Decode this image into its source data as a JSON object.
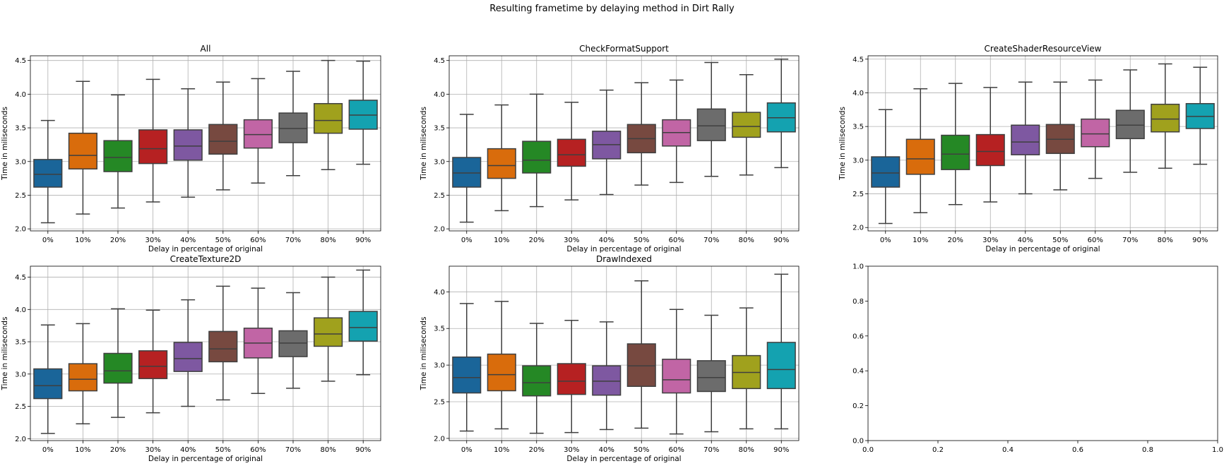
{
  "suptitle": "Resulting frametime by delaying method in Dirt Rally",
  "colors": [
    "#1f77b4",
    "#ff7f0e",
    "#2ca02c",
    "#d62728",
    "#9467bd",
    "#8c564b",
    "#e377c2",
    "#7f7f7f",
    "#bcbd22",
    "#17becf"
  ],
  "chart_data": [
    {
      "type": "box",
      "title": "All",
      "xlabel": "Delay in percentage of original",
      "ylabel": "Time in miliseconds",
      "ylim": [
        1.97,
        4.57
      ],
      "yticks": [
        "2.0",
        "2.5",
        "3.0",
        "3.5",
        "4.0",
        "4.5"
      ],
      "grid": true,
      "categories": [
        "0%",
        "10%",
        "20%",
        "30%",
        "40%",
        "50%",
        "60%",
        "70%",
        "80%",
        "90%"
      ],
      "boxes": [
        {
          "whislo": 2.09,
          "q1": 2.62,
          "med": 2.81,
          "q3": 3.03,
          "whishi": 3.61
        },
        {
          "whislo": 2.22,
          "q1": 2.89,
          "med": 3.09,
          "q3": 3.42,
          "whishi": 4.19
        },
        {
          "whislo": 2.31,
          "q1": 2.85,
          "med": 3.06,
          "q3": 3.31,
          "whishi": 3.99
        },
        {
          "whislo": 2.4,
          "q1": 2.97,
          "med": 3.19,
          "q3": 3.47,
          "whishi": 4.22
        },
        {
          "whislo": 2.47,
          "q1": 3.02,
          "med": 3.23,
          "q3": 3.47,
          "whishi": 4.08
        },
        {
          "whislo": 2.58,
          "q1": 3.11,
          "med": 3.3,
          "q3": 3.55,
          "whishi": 4.18
        },
        {
          "whislo": 2.68,
          "q1": 3.2,
          "med": 3.4,
          "q3": 3.62,
          "whishi": 4.23
        },
        {
          "whislo": 2.79,
          "q1": 3.28,
          "med": 3.49,
          "q3": 3.72,
          "whishi": 4.34
        },
        {
          "whislo": 2.88,
          "q1": 3.42,
          "med": 3.61,
          "q3": 3.86,
          "whishi": 4.5
        },
        {
          "whislo": 2.96,
          "q1": 3.48,
          "med": 3.69,
          "q3": 3.91,
          "whishi": 4.49
        }
      ]
    },
    {
      "type": "box",
      "title": "CheckFormatSupport",
      "xlabel": "Delay in percentage of original",
      "ylabel": "Time in miliseconds",
      "ylim": [
        1.97,
        4.57
      ],
      "yticks": [
        "2.0",
        "2.5",
        "3.0",
        "3.5",
        "4.0",
        "4.5"
      ],
      "grid": true,
      "categories": [
        "0%",
        "10%",
        "20%",
        "30%",
        "40%",
        "50%",
        "60%",
        "70%",
        "80%",
        "90%"
      ],
      "boxes": [
        {
          "whislo": 2.1,
          "q1": 2.62,
          "med": 2.83,
          "q3": 3.06,
          "whishi": 3.7
        },
        {
          "whislo": 2.27,
          "q1": 2.75,
          "med": 2.94,
          "q3": 3.19,
          "whishi": 3.84
        },
        {
          "whislo": 2.33,
          "q1": 2.83,
          "med": 3.02,
          "q3": 3.3,
          "whishi": 4.0
        },
        {
          "whislo": 2.43,
          "q1": 2.93,
          "med": 3.1,
          "q3": 3.33,
          "whishi": 3.88
        },
        {
          "whislo": 2.51,
          "q1": 3.04,
          "med": 3.25,
          "q3": 3.45,
          "whishi": 4.06
        },
        {
          "whislo": 2.65,
          "q1": 3.13,
          "med": 3.34,
          "q3": 3.55,
          "whishi": 4.17
        },
        {
          "whislo": 2.69,
          "q1": 3.23,
          "med": 3.43,
          "q3": 3.62,
          "whishi": 4.21
        },
        {
          "whislo": 2.78,
          "q1": 3.31,
          "med": 3.53,
          "q3": 3.78,
          "whishi": 4.47
        },
        {
          "whislo": 2.8,
          "q1": 3.36,
          "med": 3.52,
          "q3": 3.73,
          "whishi": 4.29
        },
        {
          "whislo": 2.91,
          "q1": 3.44,
          "med": 3.65,
          "q3": 3.87,
          "whishi": 4.52
        }
      ]
    },
    {
      "type": "box",
      "title": "CreateShaderResourceView",
      "xlabel": "Delay in percentage of original",
      "ylabel": "Time in miliseconds",
      "ylim": [
        1.95,
        4.55
      ],
      "yticks": [
        "2.0",
        "2.5",
        "3.0",
        "3.5",
        "4.0",
        "4.5"
      ],
      "grid": true,
      "categories": [
        "0%",
        "10%",
        "20%",
        "30%",
        "40%",
        "50%",
        "60%",
        "70%",
        "80%",
        "90%"
      ],
      "boxes": [
        {
          "whislo": 2.06,
          "q1": 2.6,
          "med": 2.81,
          "q3": 3.05,
          "whishi": 3.75
        },
        {
          "whislo": 2.22,
          "q1": 2.79,
          "med": 3.02,
          "q3": 3.31,
          "whishi": 4.06
        },
        {
          "whislo": 2.34,
          "q1": 2.86,
          "med": 3.09,
          "q3": 3.37,
          "whishi": 4.14
        },
        {
          "whislo": 2.38,
          "q1": 2.92,
          "med": 3.13,
          "q3": 3.38,
          "whishi": 4.08
        },
        {
          "whislo": 2.5,
          "q1": 3.08,
          "med": 3.27,
          "q3": 3.52,
          "whishi": 4.16
        },
        {
          "whislo": 2.56,
          "q1": 3.1,
          "med": 3.31,
          "q3": 3.53,
          "whishi": 4.16
        },
        {
          "whislo": 2.73,
          "q1": 3.2,
          "med": 3.39,
          "q3": 3.61,
          "whishi": 4.19
        },
        {
          "whislo": 2.82,
          "q1": 3.32,
          "med": 3.52,
          "q3": 3.74,
          "whishi": 4.34
        },
        {
          "whislo": 2.88,
          "q1": 3.42,
          "med": 3.61,
          "q3": 3.83,
          "whishi": 4.43
        },
        {
          "whislo": 2.94,
          "q1": 3.47,
          "med": 3.65,
          "q3": 3.84,
          "whishi": 4.38
        }
      ]
    },
    {
      "type": "box",
      "title": "CreateTexture2D",
      "xlabel": "Delay in percentage of original",
      "ylabel": "Time in miliseconds",
      "ylim": [
        1.97,
        4.67
      ],
      "yticks": [
        "2.0",
        "2.5",
        "3.0",
        "3.5",
        "4.0",
        "4.5"
      ],
      "grid": true,
      "categories": [
        "0%",
        "10%",
        "20%",
        "30%",
        "40%",
        "50%",
        "60%",
        "70%",
        "80%",
        "90%"
      ],
      "boxes": [
        {
          "whislo": 2.08,
          "q1": 2.62,
          "med": 2.82,
          "q3": 3.08,
          "whishi": 3.76
        },
        {
          "whislo": 2.23,
          "q1": 2.74,
          "med": 2.92,
          "q3": 3.16,
          "whishi": 3.78
        },
        {
          "whislo": 2.33,
          "q1": 2.86,
          "med": 3.05,
          "q3": 3.32,
          "whishi": 4.01
        },
        {
          "whislo": 2.4,
          "q1": 2.93,
          "med": 3.12,
          "q3": 3.36,
          "whishi": 3.99
        },
        {
          "whislo": 2.5,
          "q1": 3.04,
          "med": 3.24,
          "q3": 3.49,
          "whishi": 4.15
        },
        {
          "whislo": 2.6,
          "q1": 3.19,
          "med": 3.39,
          "q3": 3.66,
          "whishi": 4.36
        },
        {
          "whislo": 2.7,
          "q1": 3.25,
          "med": 3.48,
          "q3": 3.71,
          "whishi": 4.33
        },
        {
          "whislo": 2.78,
          "q1": 3.27,
          "med": 3.48,
          "q3": 3.67,
          "whishi": 4.26
        },
        {
          "whislo": 2.89,
          "q1": 3.43,
          "med": 3.62,
          "q3": 3.87,
          "whishi": 4.5
        },
        {
          "whislo": 2.99,
          "q1": 3.51,
          "med": 3.72,
          "q3": 3.97,
          "whishi": 4.61
        }
      ]
    },
    {
      "type": "box",
      "title": "DrawIndexed",
      "xlabel": "Delay in percentage of original",
      "ylabel": "Time in miliseconds",
      "ylim": [
        1.97,
        4.35
      ],
      "yticks": [
        "2.0",
        "2.5",
        "3.0",
        "3.5",
        "4.0"
      ],
      "grid": true,
      "categories": [
        "0%",
        "10%",
        "20%",
        "30%",
        "40%",
        "50%",
        "60%",
        "70%",
        "80%",
        "90%"
      ],
      "boxes": [
        {
          "whislo": 2.1,
          "q1": 2.62,
          "med": 2.83,
          "q3": 3.11,
          "whishi": 3.84
        },
        {
          "whislo": 2.13,
          "q1": 2.65,
          "med": 2.87,
          "q3": 3.15,
          "whishi": 3.87
        },
        {
          "whislo": 2.07,
          "q1": 2.58,
          "med": 2.76,
          "q3": 2.99,
          "whishi": 3.57
        },
        {
          "whislo": 2.08,
          "q1": 2.6,
          "med": 2.78,
          "q3": 3.02,
          "whishi": 3.61
        },
        {
          "whislo": 2.12,
          "q1": 2.59,
          "med": 2.78,
          "q3": 2.99,
          "whishi": 3.59
        },
        {
          "whislo": 2.14,
          "q1": 2.71,
          "med": 2.99,
          "q3": 3.29,
          "whishi": 4.15
        },
        {
          "whislo": 2.06,
          "q1": 2.62,
          "med": 2.8,
          "q3": 3.08,
          "whishi": 3.76
        },
        {
          "whislo": 2.09,
          "q1": 2.64,
          "med": 2.83,
          "q3": 3.06,
          "whishi": 3.68
        },
        {
          "whislo": 2.13,
          "q1": 2.68,
          "med": 2.9,
          "q3": 3.13,
          "whishi": 3.78
        },
        {
          "whislo": 2.13,
          "q1": 2.68,
          "med": 2.94,
          "q3": 3.31,
          "whishi": 4.24
        }
      ]
    },
    {
      "type": "empty",
      "title": "",
      "xlabel": "",
      "ylabel": "",
      "xlim": [
        0,
        1
      ],
      "ylim": [
        0,
        1
      ],
      "xticks": [
        "0.0",
        "0.2",
        "0.4",
        "0.6",
        "0.8",
        "1.0"
      ],
      "yticks": [
        "0.0",
        "0.2",
        "0.4",
        "0.6",
        "0.8",
        "1.0"
      ],
      "grid": false
    }
  ]
}
